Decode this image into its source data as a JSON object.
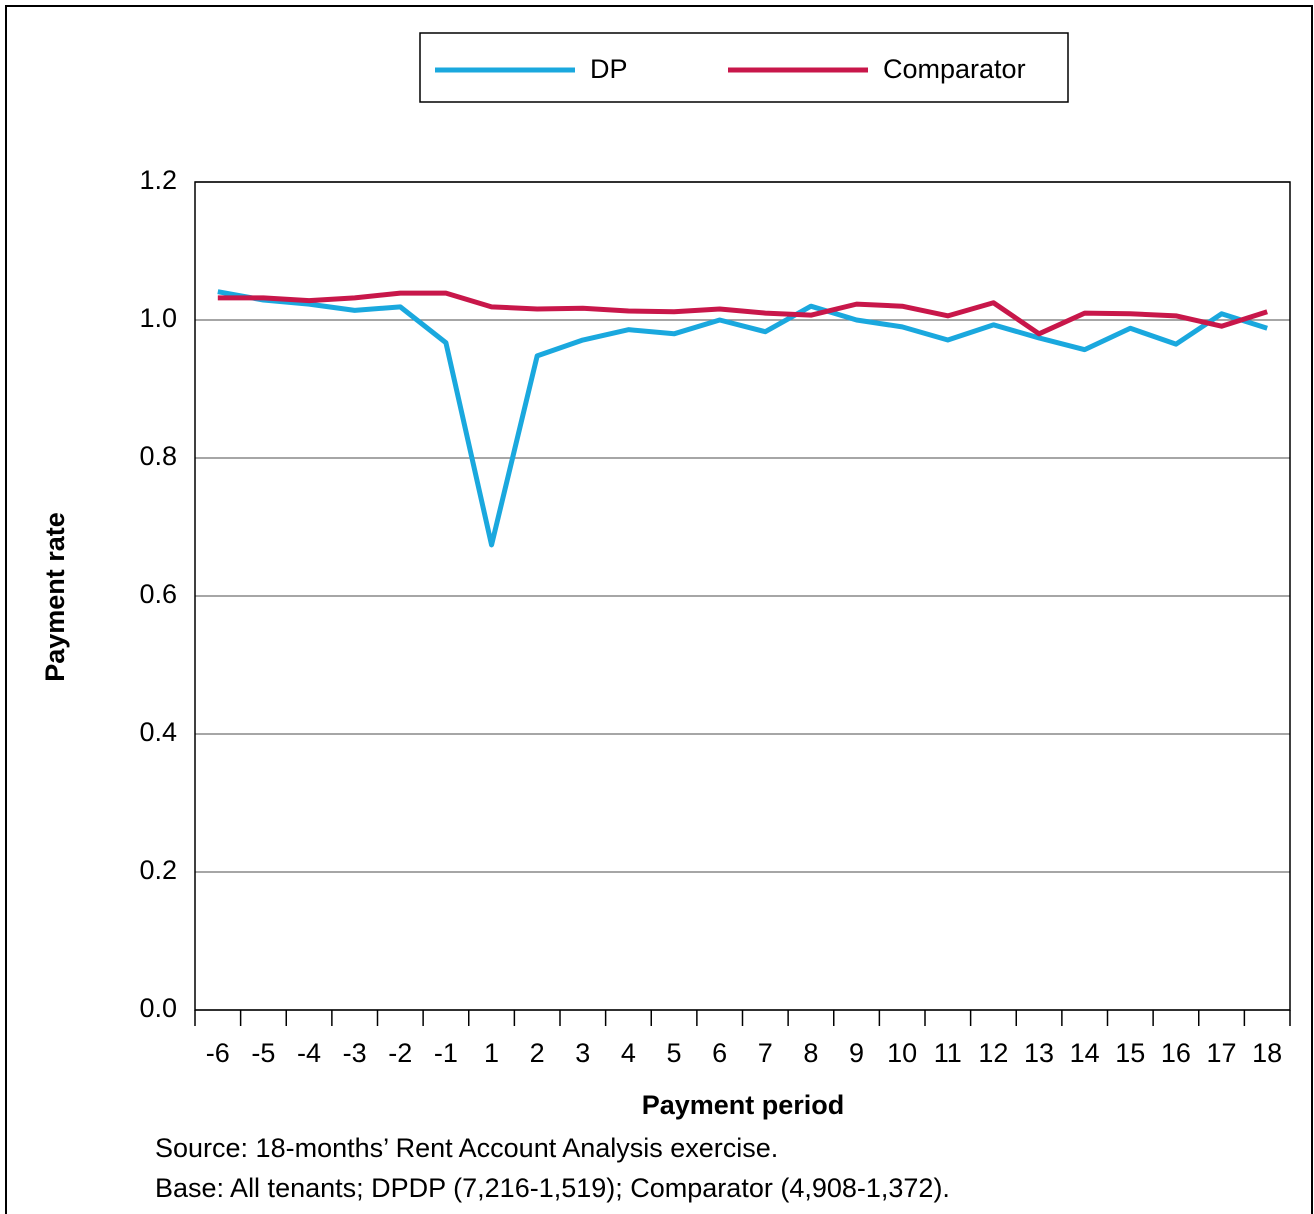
{
  "chart_data": {
    "type": "line",
    "x_label": "Payment period",
    "y_label": "Payment rate",
    "categories": [
      "-6",
      "-5",
      "-4",
      "-3",
      "-2",
      "-1",
      "1",
      "2",
      "3",
      "4",
      "5",
      "6",
      "7",
      "8",
      "9",
      "10",
      "11",
      "12",
      "13",
      "14",
      "15",
      "16",
      "17",
      "18"
    ],
    "series": [
      {
        "name": "DP",
        "color": "#1aa8de",
        "values": [
          1.041,
          1.029,
          1.023,
          1.014,
          1.019,
          0.967,
          0.674,
          0.948,
          0.971,
          0.986,
          0.98,
          1.0,
          0.983,
          1.02,
          1.0,
          0.99,
          0.971,
          0.993,
          0.974,
          0.957,
          0.988,
          0.965,
          1.009,
          0.988
        ]
      },
      {
        "name": "Comparator",
        "color": "#c8174a",
        "values": [
          1.032,
          1.032,
          1.028,
          1.032,
          1.039,
          1.039,
          1.019,
          1.016,
          1.017,
          1.013,
          1.012,
          1.016,
          1.01,
          1.007,
          1.023,
          1.02,
          1.006,
          1.025,
          0.98,
          1.01,
          1.009,
          1.006,
          0.991,
          1.012
        ]
      }
    ],
    "ylim": [
      0,
      1.2
    ],
    "yticks": [
      {
        "value": 0,
        "label": "0.0"
      },
      0.2,
      0.4,
      0.6,
      0.8,
      {
        "value": 1,
        "label": "1.0"
      },
      1.2
    ],
    "grid": true,
    "legend": "top",
    "notes": [
      "Source: 18-months’ Rent Account Analysis exercise.",
      "Base: All tenants; DPDP (7,216-1,519); Comparator (4,908-1,372)."
    ]
  }
}
